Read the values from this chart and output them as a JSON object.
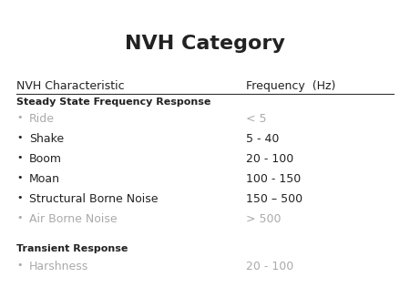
{
  "title": "NVH Category",
  "title_fontsize": 16,
  "title_fontweight": "bold",
  "background_color": "#ffffff",
  "header_characteristic": "NVH Characteristic",
  "header_frequency": "Frequency  (Hz)",
  "header_fontsize": 9,
  "section1_label": "Steady State Frequency Response",
  "section1_fontsize": 8,
  "section2_label": "Transient Response",
  "section2_fontsize": 8,
  "items": [
    {
      "name": "Ride",
      "freq": "< 5",
      "gray": true
    },
    {
      "name": "Shake",
      "freq": "5 - 40",
      "gray": false
    },
    {
      "name": "Boom",
      "freq": "20 - 100",
      "gray": false
    },
    {
      "name": "Moan",
      "freq": "100 - 150",
      "gray": false
    },
    {
      "name": "Structural Borne Noise",
      "freq": "150 – 500",
      "gray": false
    },
    {
      "name": "Air Borne Noise",
      "freq": "> 500",
      "gray": true
    }
  ],
  "transient_items": [
    {
      "name": "Harshness",
      "freq": "20 - 100",
      "gray": true
    }
  ],
  "bullet": "•",
  "item_fontsize": 9,
  "gray_color": "#aaaaaa",
  "black_color": "#222222",
  "underline_color": "#333333"
}
